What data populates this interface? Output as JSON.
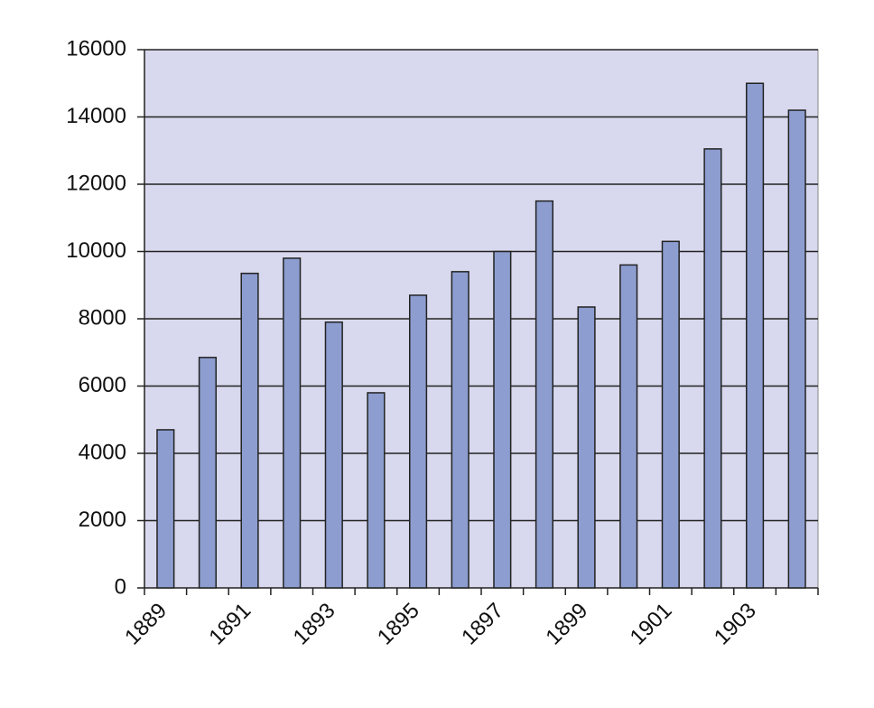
{
  "chart_data": {
    "type": "bar",
    "categories": [
      "1889",
      null,
      "1891",
      null,
      "1893",
      null,
      "1895",
      null,
      "1897",
      null,
      "1899",
      null,
      "1901",
      null,
      "1903",
      null
    ],
    "values": [
      4700,
      6850,
      9350,
      9800,
      7900,
      5800,
      8700,
      9400,
      10000,
      11500,
      8350,
      9600,
      10300,
      13050,
      15000,
      14200
    ],
    "color": "#8d9dd0",
    "ylim": [
      0,
      16000
    ],
    "yticks": [
      0,
      2000,
      4000,
      6000,
      8000,
      10000,
      12000,
      14000,
      16000
    ],
    "grid": true
  }
}
